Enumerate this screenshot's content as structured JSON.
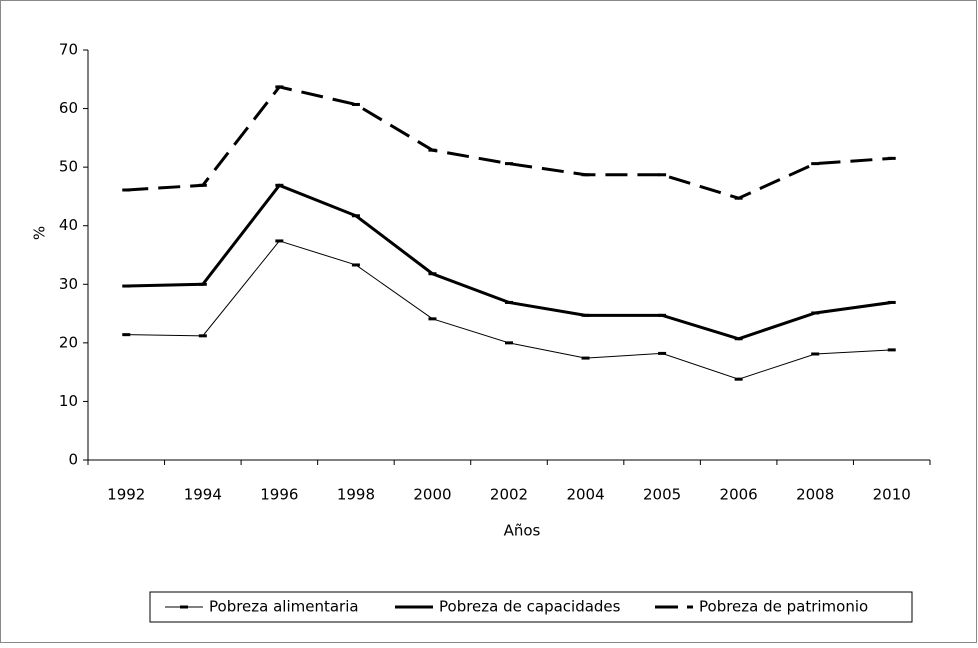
{
  "chart_data": {
    "type": "line",
    "x_label": "Años",
    "y_label": "%",
    "categories": [
      "1992",
      "1994",
      "1996",
      "1998",
      "2000",
      "2002",
      "2004",
      "2005",
      "2006",
      "2008",
      "2010"
    ],
    "series": [
      {
        "name": "Pobreza alimentaria",
        "color": "#000000",
        "values": [
          21.4,
          21.2,
          37.4,
          33.3,
          24.1,
          20.0,
          17.4,
          18.2,
          13.8,
          18.1,
          18.8
        ]
      },
      {
        "name": "Pobreza de capacidades",
        "color": "#000000",
        "values": [
          29.7,
          30.0,
          46.9,
          41.7,
          31.8,
          26.9,
          24.7,
          24.7,
          20.7,
          25.1,
          26.9
        ]
      },
      {
        "name": "Pobreza de patrimonio",
        "color": "#000000",
        "values": [
          46.1,
          46.9,
          63.7,
          60.7,
          52.9,
          50.6,
          48.7,
          48.7,
          44.7,
          50.6,
          51.5
        ]
      }
    ],
    "ylim": [
      0,
      70
    ],
    "yticks": [
      0,
      10,
      20,
      30,
      40,
      50,
      60,
      70
    ],
    "grid": false,
    "legend": "bottom"
  }
}
